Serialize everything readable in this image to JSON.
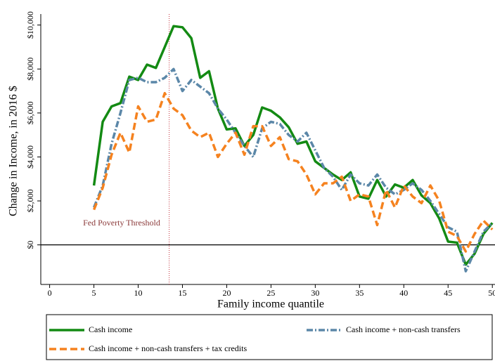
{
  "chart_data": {
    "type": "line",
    "xlabel": "Family income quantile",
    "ylabel": "Change in Income, in 2016 $",
    "annotation": "Fed Poverty Threshold",
    "threshold_x": 13.5,
    "x": [
      5,
      6,
      7,
      8,
      9,
      10,
      11,
      12,
      13,
      14,
      15,
      16,
      17,
      18,
      19,
      20,
      21,
      22,
      23,
      24,
      25,
      26,
      27,
      28,
      29,
      30,
      31,
      32,
      33,
      34,
      35,
      36,
      37,
      38,
      39,
      40,
      41,
      42,
      43,
      44,
      45,
      46,
      47,
      48,
      49,
      50
    ],
    "series": [
      {
        "name": "Cash income",
        "color": "#138a13",
        "dash": "solid",
        "values": [
          2700,
          5600,
          6300,
          6450,
          7650,
          7500,
          8200,
          8050,
          9000,
          9950,
          9900,
          9400,
          7600,
          7900,
          6200,
          5250,
          5300,
          4500,
          5000,
          6250,
          6100,
          5800,
          5350,
          4600,
          4700,
          3800,
          3500,
          3200,
          2950,
          3300,
          2200,
          2100,
          2950,
          2200,
          2750,
          2600,
          2950,
          2250,
          1900,
          1200,
          150,
          100,
          -900,
          -400,
          500,
          1000
        ]
      },
      {
        "name": "Cash income + non-cash transfers",
        "color": "#5b87a8",
        "dash": "dashdot",
        "values": [
          1700,
          2700,
          4600,
          6000,
          7500,
          7600,
          7400,
          7400,
          7600,
          8000,
          7000,
          7500,
          7200,
          6900,
          6200,
          5700,
          5100,
          4500,
          4000,
          5300,
          5600,
          5500,
          5000,
          4700,
          5100,
          4300,
          3500,
          3100,
          2500,
          3200,
          2800,
          2700,
          3200,
          2600,
          2300,
          2500,
          2800,
          2500,
          2000,
          1400,
          800,
          600,
          -1200,
          -300,
          600,
          1000
        ]
      },
      {
        "name": "Cash income + non-cash transfers + tax credits",
        "color": "#f5821f",
        "dash": "dash",
        "values": [
          1600,
          2600,
          4100,
          5100,
          4200,
          6300,
          5600,
          5700,
          6900,
          6200,
          5900,
          5200,
          4900,
          5100,
          4000,
          4600,
          5100,
          4100,
          5400,
          5400,
          4500,
          4900,
          3900,
          3800,
          3200,
          2300,
          2800,
          2800,
          3100,
          2000,
          2300,
          2200,
          900,
          2500,
          1700,
          2700,
          2200,
          1900,
          2700,
          2000,
          600,
          400,
          -300,
          500,
          1100,
          700
        ]
      }
    ],
    "xlim": [
      -1,
      50.3
    ],
    "xticks": [
      0,
      5,
      10,
      15,
      20,
      25,
      30,
      35,
      40,
      45,
      50
    ],
    "ylim": [
      -1800,
      10500
    ],
    "yticks": [
      {
        "value": 0,
        "label": "$0"
      },
      {
        "value": 2000,
        "label": "$2,000"
      },
      {
        "value": 4000,
        "label": "$4,000"
      },
      {
        "value": 6000,
        "label": "$6,000"
      },
      {
        "value": 8000,
        "label": "$8,000"
      },
      {
        "value": 10000,
        "label": "$10,000"
      }
    ],
    "grid": false
  }
}
